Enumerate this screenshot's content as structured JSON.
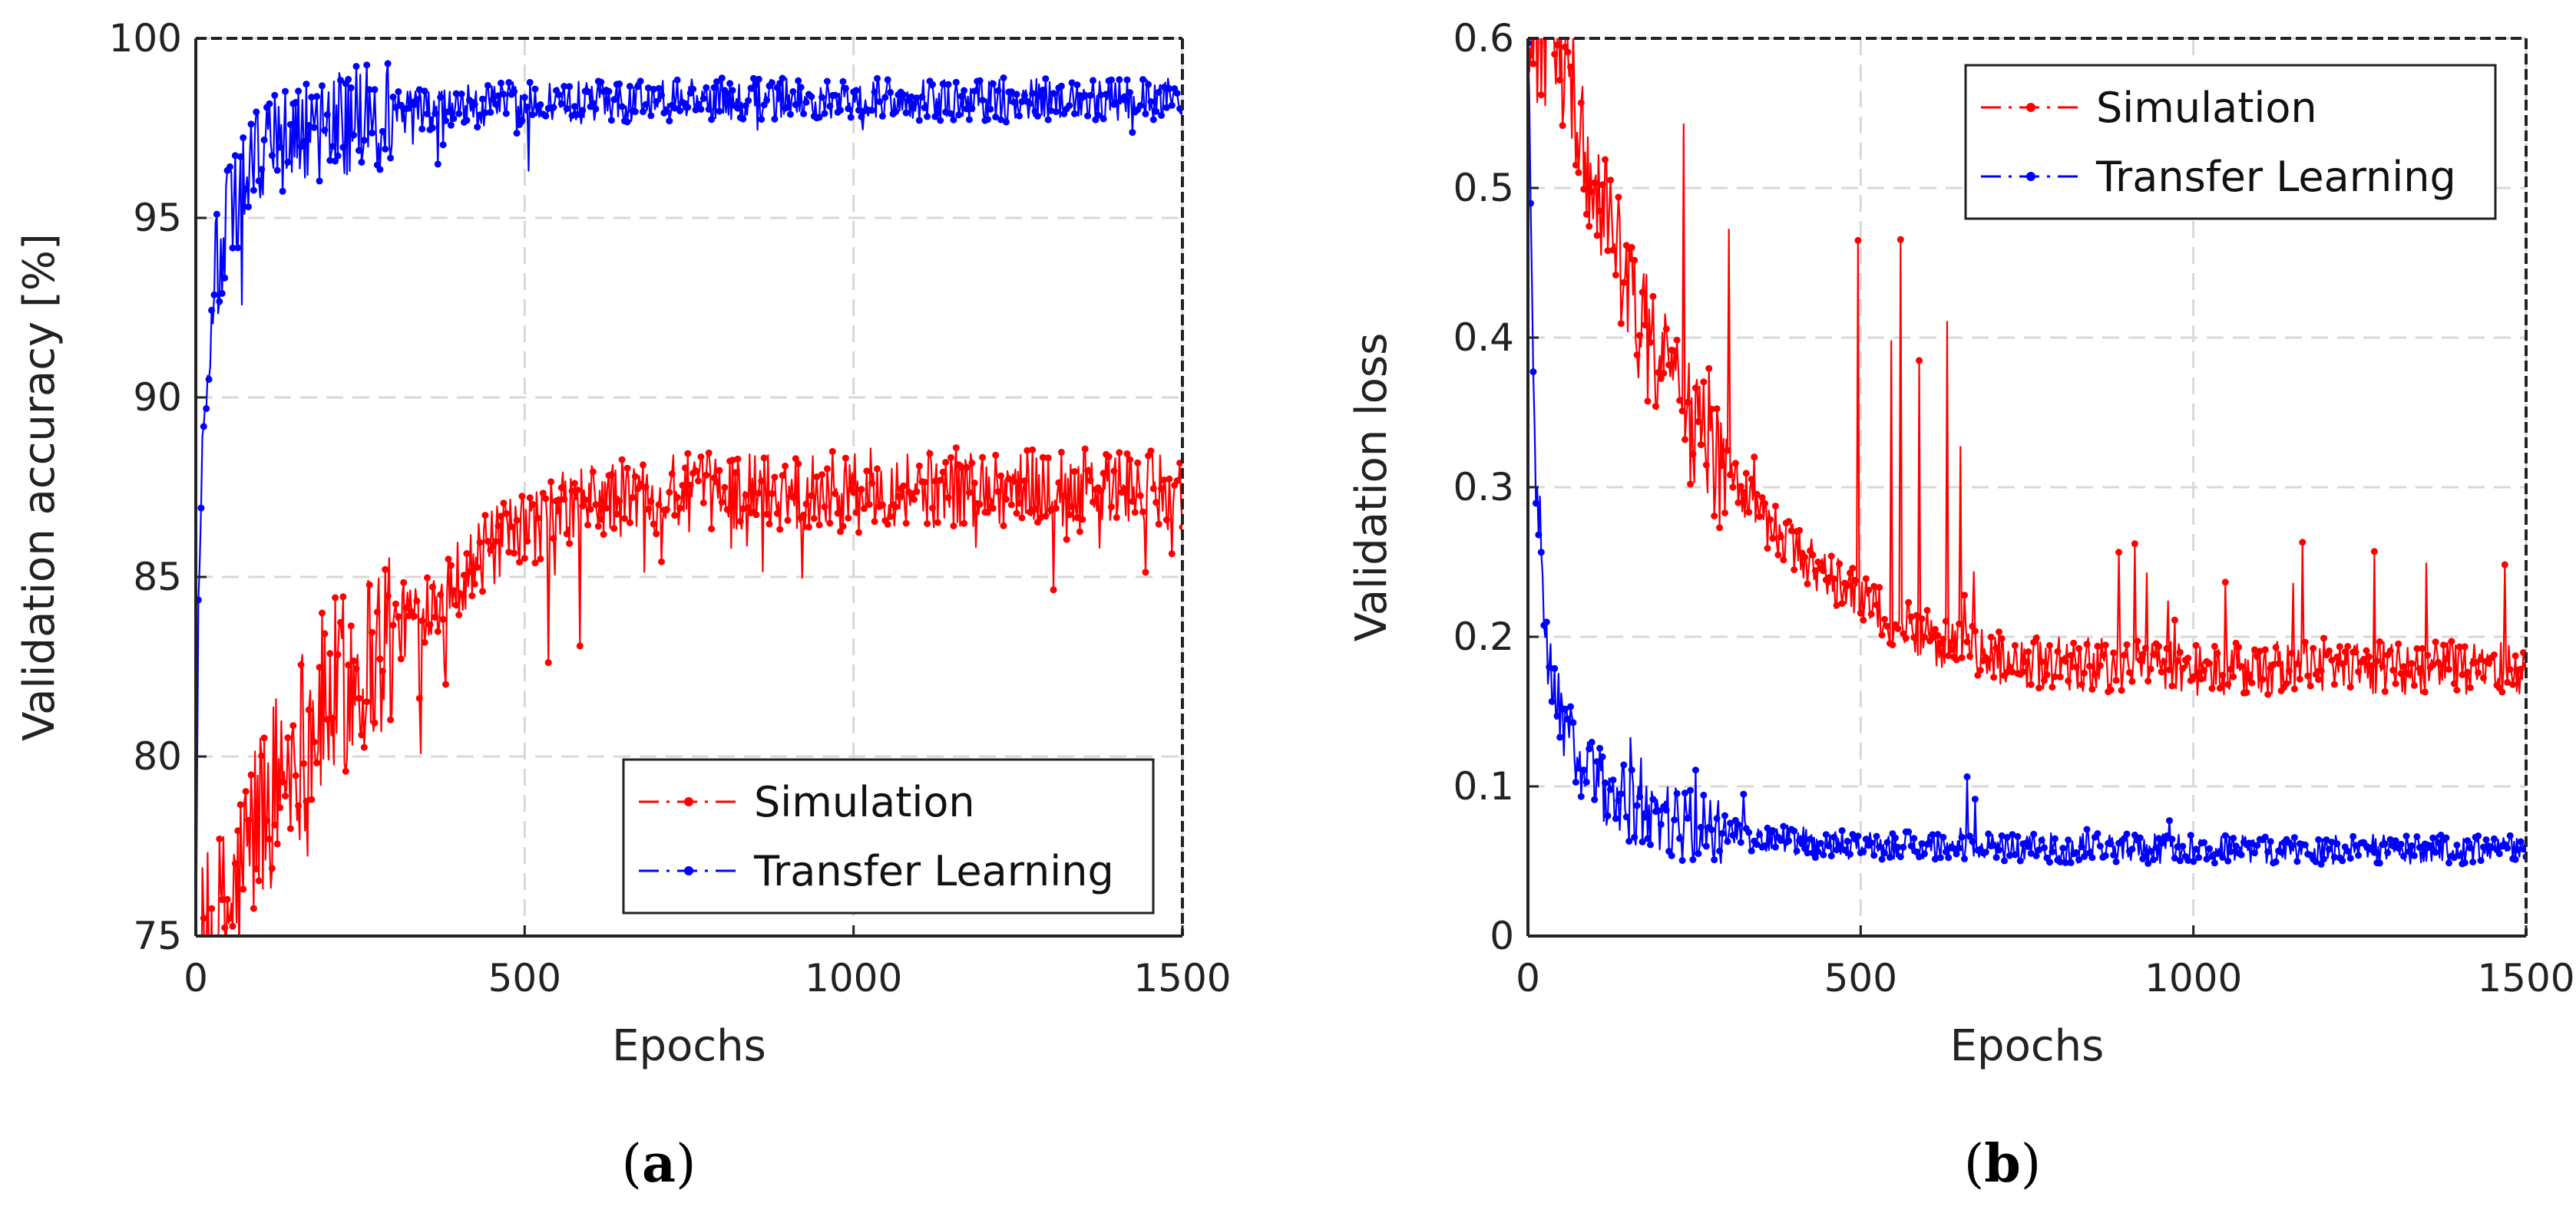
{
  "chart_data": [
    {
      "type": "line",
      "panel_id": "a",
      "caption_open": "(",
      "caption_letter": "a",
      "caption_close": ")",
      "xlabel": "Epochs",
      "ylabel": "Validation accuracy [%]",
      "xlim": [
        0,
        1500
      ],
      "ylim": [
        75,
        100
      ],
      "xticks": [
        0,
        500,
        1000,
        1500
      ],
      "yticks": [
        75,
        80,
        85,
        90,
        95,
        100
      ],
      "xtick_labels": [
        "0",
        "500",
        "1000",
        "1500"
      ],
      "ytick_labels": [
        "75",
        "80",
        "85",
        "90",
        "95",
        "100"
      ],
      "grid": true,
      "legend_position": "bottom-right",
      "series": [
        {
          "name": "Simulation",
          "color": "#ff0000",
          "style": "dash-dot-marker",
          "x": [
            0,
            30,
            60,
            80,
            100,
            130,
            160,
            200,
            250,
            300,
            350,
            400,
            450,
            500,
            550,
            600,
            700,
            800,
            900,
            1000,
            1100,
            1200,
            1300,
            1400,
            1500
          ],
          "values": [
            74,
            75,
            76,
            77.5,
            78.5,
            79.5,
            80.5,
            81.5,
            82.5,
            83.5,
            84.3,
            85,
            85.8,
            86.3,
            86.8,
            87.1,
            87.3,
            87.4,
            87.4,
            87.5,
            87.5,
            87.5,
            87.5,
            87.5,
            87.4
          ]
        },
        {
          "name": "Transfer Learning",
          "color": "#0000ff",
          "style": "dash-dot-marker",
          "x": [
            0,
            5,
            10,
            20,
            30,
            50,
            75,
            100,
            150,
            200,
            300,
            400,
            500,
            600,
            700,
            800,
            900,
            1000,
            1100,
            1200,
            1300,
            1400,
            1500
          ],
          "values": [
            75,
            86,
            89,
            92,
            93.5,
            95,
            96,
            96.8,
            97.3,
            97.6,
            97.9,
            98.1,
            98.2,
            98.2,
            98.3,
            98.3,
            98.3,
            98.3,
            98.3,
            98.3,
            98.3,
            98.3,
            98.3
          ]
        }
      ]
    },
    {
      "type": "line",
      "panel_id": "b",
      "caption_open": "(",
      "caption_letter": "b",
      "caption_close": ")",
      "xlabel": "Epochs",
      "ylabel": "Validation loss",
      "xlim": [
        0,
        1500
      ],
      "ylim": [
        0,
        0.6
      ],
      "xticks": [
        0,
        500,
        1000,
        1500
      ],
      "yticks": [
        0,
        0.1,
        0.2,
        0.3,
        0.4,
        0.5,
        0.6
      ],
      "xtick_labels": [
        "0",
        "500",
        "1000",
        "1500"
      ],
      "ytick_labels": [
        "0",
        "0.1",
        "0.2",
        "0.3",
        "0.4",
        "0.5",
        "0.6"
      ],
      "grid": true,
      "legend_position": "top-right",
      "series": [
        {
          "name": "Simulation",
          "color": "#ff0000",
          "style": "dash-dot-marker",
          "x": [
            0,
            30,
            60,
            100,
            150,
            200,
            250,
            300,
            350,
            400,
            450,
            500,
            550,
            600,
            650,
            700,
            750,
            800,
            900,
            1000,
            1100,
            1200,
            1300,
            1400,
            1500
          ],
          "values": [
            0.6,
            0.6,
            0.58,
            0.5,
            0.43,
            0.38,
            0.34,
            0.31,
            0.28,
            0.26,
            0.24,
            0.225,
            0.21,
            0.2,
            0.192,
            0.187,
            0.184,
            0.182,
            0.18,
            0.179,
            0.179,
            0.179,
            0.179,
            0.179,
            0.179
          ]
        },
        {
          "name": "Transfer Learning",
          "color": "#0000ff",
          "style": "dash-dot-marker",
          "x": [
            0,
            5,
            10,
            20,
            30,
            50,
            75,
            100,
            150,
            200,
            300,
            400,
            500,
            600,
            800,
            1000,
            1200,
            1400,
            1500
          ],
          "values": [
            0.6,
            0.45,
            0.33,
            0.24,
            0.19,
            0.15,
            0.12,
            0.105,
            0.088,
            0.078,
            0.068,
            0.063,
            0.061,
            0.06,
            0.059,
            0.058,
            0.058,
            0.058,
            0.058
          ]
        }
      ]
    }
  ]
}
